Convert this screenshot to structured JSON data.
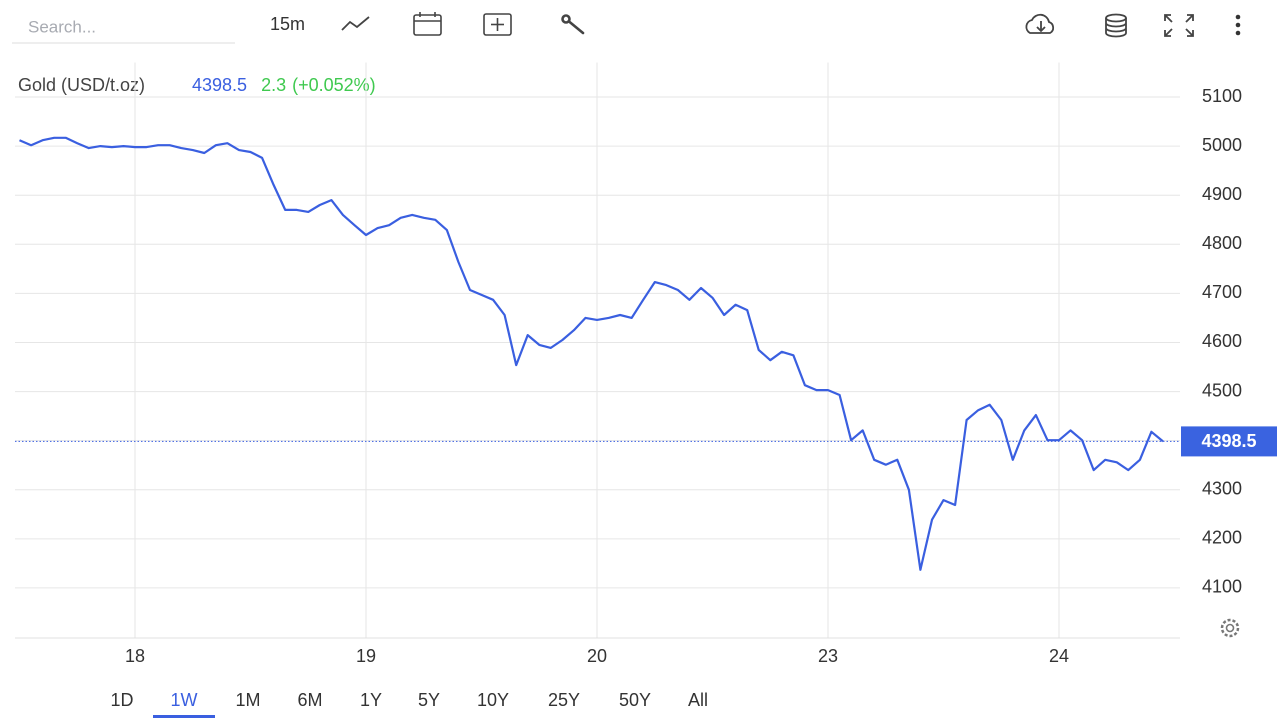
{
  "toolbar": {
    "search_placeholder": "Search...",
    "interval": "15m"
  },
  "quote": {
    "name": "Gold (USD/t.oz)",
    "change": 2.3,
    "change_pct": "(+0.052%)"
  },
  "chart_data": {
    "type": "line",
    "x": [
      null,
      null,
      null,
      null,
      null,
      null,
      null,
      null,
      null,
      null,
      "18",
      null,
      null,
      null,
      null,
      null,
      null,
      null,
      null,
      null,
      null,
      null,
      null,
      null,
      null,
      null,
      null,
      null,
      null,
      null,
      "19",
      null,
      null,
      null,
      null,
      null,
      null,
      null,
      null,
      null,
      null,
      null,
      null,
      null,
      null,
      null,
      null,
      null,
      null,
      null,
      "20",
      null,
      null,
      null,
      null,
      null,
      null,
      null,
      null,
      null,
      null,
      null,
      null,
      null,
      null,
      null,
      null,
      null,
      null,
      null,
      "23",
      null,
      null,
      null,
      null,
      null,
      null,
      null,
      null,
      null,
      null,
      null,
      null,
      null,
      null,
      null,
      null,
      null,
      null,
      null,
      "24",
      null,
      null,
      null,
      null,
      null,
      null,
      null,
      null,
      null
    ],
    "series": [
      {
        "name": "Gold (USD/t.oz)",
        "color": "#3a5fe0",
        "values": [
          5012,
          5002,
          5012,
          5017,
          5017,
          5006,
          4996,
          5000,
          4998,
          5000,
          4998,
          4998,
          5002,
          5002,
          4996,
          4992,
          4986,
          5002,
          5006,
          4992,
          4988,
          4976,
          4921,
          4870,
          4870,
          4866,
          4880,
          4890,
          4860,
          4839,
          4819,
          4833,
          4839,
          4854,
          4860,
          4854,
          4850,
          4829,
          4764,
          4707,
          4697,
          4687,
          4656,
          4554,
          4615,
          4595,
          4589,
          4605,
          4625,
          4650,
          4646,
          4650,
          4656,
          4650,
          4687,
          4723,
          4717,
          4707,
          4687,
          4711,
          4691,
          4656,
          4677,
          4666,
          4585,
          4564,
          4581,
          4574,
          4513,
          4503,
          4503,
          4493,
          4401,
          4421,
          4361,
          4351,
          4361,
          4300,
          4137,
          4239,
          4279,
          4269,
          4442,
          4462,
          4473,
          4442,
          4361,
          4421,
          4452,
          4401,
          4401,
          4421,
          4401,
          4340,
          4361,
          4356,
          4340,
          4361,
          4418,
          4398.5
        ]
      }
    ],
    "last_price": 4398.5,
    "ylim": [
      3998,
      5150
    ],
    "yticks": [
      4100,
      4200,
      4300,
      4400,
      4500,
      4600,
      4700,
      4800,
      4900,
      5000,
      5100
    ],
    "grid": true
  },
  "ranges": {
    "options": [
      "1D",
      "1W",
      "1M",
      "6M",
      "1Y",
      "5Y",
      "10Y",
      "25Y",
      "50Y",
      "All"
    ],
    "active": 1
  }
}
